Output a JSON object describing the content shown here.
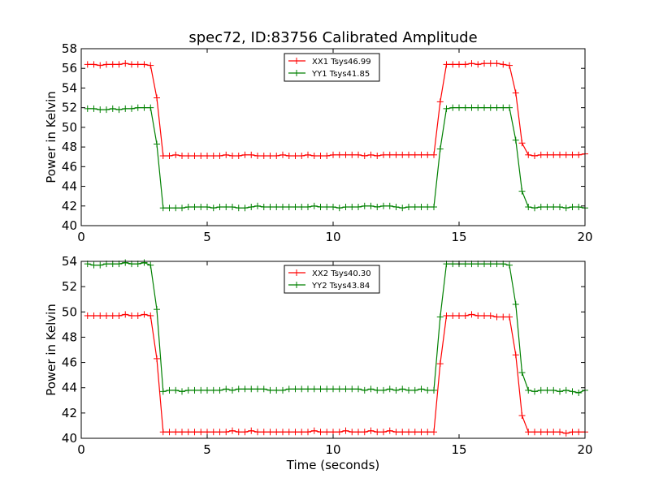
{
  "chart_data": [
    {
      "type": "line",
      "title": "spec72, ID:83756 Calibrated Amplitude",
      "xlabel": "",
      "ylabel": "Power in Kelvin",
      "xlim": [
        0,
        20
      ],
      "ylim": [
        40,
        58
      ],
      "xticks": [
        0,
        5,
        10,
        15,
        20
      ],
      "yticks": [
        40,
        42,
        44,
        46,
        48,
        50,
        52,
        54,
        56,
        58
      ],
      "legend_position": "top-center",
      "x": [
        0.25,
        0.5,
        0.75,
        1.0,
        1.25,
        1.5,
        1.75,
        2.0,
        2.25,
        2.5,
        2.75,
        3.0,
        3.25,
        3.5,
        3.75,
        4.0,
        4.25,
        4.5,
        4.75,
        5.0,
        5.25,
        5.5,
        5.75,
        6.0,
        6.25,
        6.5,
        6.75,
        7.0,
        7.25,
        7.5,
        7.75,
        8.0,
        8.25,
        8.5,
        8.75,
        9.0,
        9.25,
        9.5,
        9.75,
        10.0,
        10.25,
        10.5,
        10.75,
        11.0,
        11.25,
        11.5,
        11.75,
        12.0,
        12.25,
        12.5,
        12.75,
        13.0,
        13.25,
        13.5,
        13.75,
        14.0,
        14.25,
        14.5,
        14.75,
        15.0,
        15.25,
        15.5,
        15.75,
        16.0,
        16.25,
        16.5,
        16.75,
        17.0,
        17.25,
        17.5,
        17.75,
        18.0,
        18.25,
        18.5,
        18.75,
        19.0,
        19.25,
        19.5,
        19.75,
        20.0
      ],
      "series": [
        {
          "name": "XX1 Tsys46.99",
          "color": "#ff0000",
          "values": [
            56.4,
            56.4,
            56.3,
            56.4,
            56.4,
            56.4,
            56.5,
            56.4,
            56.4,
            56.4,
            56.3,
            53.0,
            47.1,
            47.1,
            47.2,
            47.1,
            47.1,
            47.1,
            47.1,
            47.1,
            47.1,
            47.1,
            47.2,
            47.1,
            47.1,
            47.2,
            47.2,
            47.1,
            47.1,
            47.1,
            47.1,
            47.2,
            47.1,
            47.1,
            47.1,
            47.2,
            47.1,
            47.1,
            47.1,
            47.2,
            47.2,
            47.2,
            47.2,
            47.2,
            47.1,
            47.2,
            47.1,
            47.2,
            47.2,
            47.2,
            47.2,
            47.2,
            47.2,
            47.2,
            47.2,
            47.2,
            52.6,
            56.4,
            56.4,
            56.4,
            56.4,
            56.5,
            56.4,
            56.5,
            56.5,
            56.5,
            56.4,
            56.3,
            53.5,
            48.4,
            47.2,
            47.1,
            47.2,
            47.2,
            47.2,
            47.2,
            47.2,
            47.2,
            47.2,
            47.3
          ]
        },
        {
          "name": "YY1 Tsys41.85",
          "color": "#008000",
          "values": [
            51.9,
            51.9,
            51.8,
            51.8,
            51.9,
            51.8,
            51.9,
            51.9,
            52.0,
            52.0,
            52.0,
            48.3,
            41.8,
            41.8,
            41.8,
            41.8,
            41.9,
            41.9,
            41.9,
            41.9,
            41.8,
            41.9,
            41.9,
            41.9,
            41.8,
            41.8,
            41.9,
            42.0,
            41.9,
            41.9,
            41.9,
            41.9,
            41.9,
            41.9,
            41.9,
            41.9,
            42.0,
            41.9,
            41.9,
            41.9,
            41.8,
            41.9,
            41.9,
            41.9,
            42.0,
            42.0,
            41.9,
            42.0,
            42.0,
            41.9,
            41.8,
            41.9,
            41.9,
            41.9,
            41.9,
            41.9,
            47.8,
            51.9,
            52.0,
            52.0,
            52.0,
            52.0,
            52.0,
            52.0,
            52.0,
            52.0,
            52.0,
            52.0,
            48.7,
            43.5,
            41.9,
            41.8,
            41.9,
            41.9,
            41.9,
            41.9,
            41.8,
            41.9,
            41.9,
            41.8
          ]
        }
      ]
    },
    {
      "type": "line",
      "title": "",
      "xlabel": "Time (seconds)",
      "ylabel": "Power in Kelvin",
      "xlim": [
        0,
        20
      ],
      "ylim": [
        40,
        54
      ],
      "xticks": [
        0,
        5,
        10,
        15,
        20
      ],
      "yticks": [
        40,
        42,
        44,
        46,
        48,
        50,
        52,
        54
      ],
      "legend_position": "top-center",
      "x": [
        0.25,
        0.5,
        0.75,
        1.0,
        1.25,
        1.5,
        1.75,
        2.0,
        2.25,
        2.5,
        2.75,
        3.0,
        3.25,
        3.5,
        3.75,
        4.0,
        4.25,
        4.5,
        4.75,
        5.0,
        5.25,
        5.5,
        5.75,
        6.0,
        6.25,
        6.5,
        6.75,
        7.0,
        7.25,
        7.5,
        7.75,
        8.0,
        8.25,
        8.5,
        8.75,
        9.0,
        9.25,
        9.5,
        9.75,
        10.0,
        10.25,
        10.5,
        10.75,
        11.0,
        11.25,
        11.5,
        11.75,
        12.0,
        12.25,
        12.5,
        12.75,
        13.0,
        13.25,
        13.5,
        13.75,
        14.0,
        14.25,
        14.5,
        14.75,
        15.0,
        15.25,
        15.5,
        15.75,
        16.0,
        16.25,
        16.5,
        16.75,
        17.0,
        17.25,
        17.5,
        17.75,
        18.0,
        18.25,
        18.5,
        18.75,
        19.0,
        19.25,
        19.5,
        19.75,
        20.0
      ],
      "series": [
        {
          "name": "XX2 Tsys40.30",
          "color": "#ff0000",
          "values": [
            49.7,
            49.7,
            49.7,
            49.7,
            49.7,
            49.7,
            49.8,
            49.7,
            49.7,
            49.8,
            49.7,
            46.3,
            40.5,
            40.5,
            40.5,
            40.5,
            40.5,
            40.5,
            40.5,
            40.5,
            40.5,
            40.5,
            40.5,
            40.6,
            40.5,
            40.5,
            40.6,
            40.5,
            40.5,
            40.5,
            40.5,
            40.5,
            40.5,
            40.5,
            40.5,
            40.5,
            40.6,
            40.5,
            40.5,
            40.5,
            40.5,
            40.6,
            40.5,
            40.5,
            40.5,
            40.6,
            40.5,
            40.5,
            40.6,
            40.5,
            40.5,
            40.5,
            40.5,
            40.5,
            40.5,
            40.5,
            45.9,
            49.7,
            49.7,
            49.7,
            49.7,
            49.8,
            49.7,
            49.7,
            49.7,
            49.6,
            49.6,
            49.6,
            46.6,
            41.8,
            40.5,
            40.5,
            40.5,
            40.5,
            40.5,
            40.5,
            40.4,
            40.5,
            40.5,
            40.5
          ]
        },
        {
          "name": "YY2 Tsys43.84",
          "color": "#008000",
          "values": [
            53.8,
            53.7,
            53.7,
            53.8,
            53.8,
            53.8,
            53.9,
            53.8,
            53.8,
            53.9,
            53.7,
            50.2,
            43.7,
            43.8,
            43.8,
            43.7,
            43.8,
            43.8,
            43.8,
            43.8,
            43.8,
            43.8,
            43.9,
            43.8,
            43.9,
            43.9,
            43.9,
            43.9,
            43.9,
            43.8,
            43.8,
            43.8,
            43.9,
            43.9,
            43.9,
            43.9,
            43.9,
            43.9,
            43.9,
            43.9,
            43.9,
            43.9,
            43.9,
            43.9,
            43.8,
            43.9,
            43.8,
            43.8,
            43.9,
            43.8,
            43.9,
            43.8,
            43.8,
            43.9,
            43.8,
            43.8,
            49.6,
            53.8,
            53.8,
            53.8,
            53.8,
            53.8,
            53.8,
            53.8,
            53.8,
            53.8,
            53.8,
            53.7,
            50.6,
            45.2,
            43.8,
            43.7,
            43.8,
            43.8,
            43.8,
            43.7,
            43.8,
            43.7,
            43.6,
            43.8
          ]
        }
      ]
    }
  ]
}
